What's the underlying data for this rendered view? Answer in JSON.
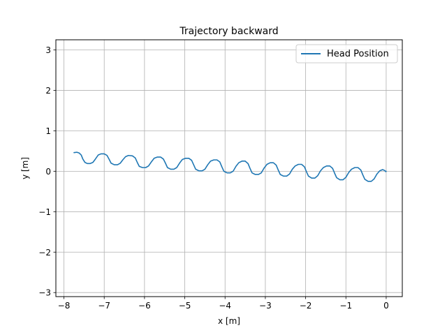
{
  "chart_data": {
    "type": "line",
    "title": "Trajectory backward",
    "xlabel": "x [m]",
    "ylabel": "y [m]",
    "xlim": [
      -8.2,
      0.4
    ],
    "ylim": [
      -3.1,
      3.25
    ],
    "xticks": [
      -8,
      -7,
      -6,
      -5,
      -4,
      -3,
      -2,
      -1,
      0
    ],
    "yticks": [
      -3,
      -2,
      -1,
      0,
      1,
      2,
      3
    ],
    "xtick_labels": [
      "−8",
      "−7",
      "−6",
      "−5",
      "−4",
      "−3",
      "−2",
      "−1",
      "0"
    ],
    "ytick_labels": [
      "−3",
      "−2",
      "−1",
      "0",
      "1",
      "2",
      "3"
    ],
    "grid": true,
    "legend_position": "top-right",
    "series": [
      {
        "name": "Head Position",
        "color": "#1f77b4",
        "points": [
          [
            -7.75,
            0.46
          ],
          [
            -7.68,
            0.47
          ],
          [
            -7.62,
            0.45
          ],
          [
            -7.57,
            0.4
          ],
          [
            -7.53,
            0.3
          ],
          [
            -7.48,
            0.22
          ],
          [
            -7.42,
            0.19
          ],
          [
            -7.35,
            0.19
          ],
          [
            -7.28,
            0.22
          ],
          [
            -7.22,
            0.3
          ],
          [
            -7.15,
            0.4
          ],
          [
            -7.08,
            0.43
          ],
          [
            -7.0,
            0.43
          ],
          [
            -6.93,
            0.39
          ],
          [
            -6.88,
            0.3
          ],
          [
            -6.83,
            0.2
          ],
          [
            -6.75,
            0.16
          ],
          [
            -6.67,
            0.16
          ],
          [
            -6.6,
            0.2
          ],
          [
            -6.54,
            0.28
          ],
          [
            -6.47,
            0.36
          ],
          [
            -6.4,
            0.39
          ],
          [
            -6.3,
            0.38
          ],
          [
            -6.23,
            0.33
          ],
          [
            -6.18,
            0.22
          ],
          [
            -6.13,
            0.12
          ],
          [
            -6.05,
            0.09
          ],
          [
            -5.97,
            0.09
          ],
          [
            -5.9,
            0.13
          ],
          [
            -5.83,
            0.23
          ],
          [
            -5.76,
            0.32
          ],
          [
            -5.68,
            0.35
          ],
          [
            -5.6,
            0.35
          ],
          [
            -5.53,
            0.3
          ],
          [
            -5.48,
            0.2
          ],
          [
            -5.43,
            0.09
          ],
          [
            -5.35,
            0.05
          ],
          [
            -5.27,
            0.05
          ],
          [
            -5.2,
            0.09
          ],
          [
            -5.13,
            0.2
          ],
          [
            -5.06,
            0.29
          ],
          [
            -4.98,
            0.32
          ],
          [
            -4.9,
            0.32
          ],
          [
            -4.83,
            0.27
          ],
          [
            -4.78,
            0.16
          ],
          [
            -4.73,
            0.05
          ],
          [
            -4.65,
            0.01
          ],
          [
            -4.57,
            0.01
          ],
          [
            -4.5,
            0.05
          ],
          [
            -4.43,
            0.16
          ],
          [
            -4.36,
            0.25
          ],
          [
            -4.28,
            0.28
          ],
          [
            -4.2,
            0.28
          ],
          [
            -4.13,
            0.23
          ],
          [
            -4.08,
            0.11
          ],
          [
            -4.03,
            0.0
          ],
          [
            -3.95,
            -0.04
          ],
          [
            -3.87,
            -0.04
          ],
          [
            -3.8,
            0.0
          ],
          [
            -3.73,
            0.12
          ],
          [
            -3.66,
            0.21
          ],
          [
            -3.58,
            0.25
          ],
          [
            -3.5,
            0.25
          ],
          [
            -3.43,
            0.19
          ],
          [
            -3.38,
            0.07
          ],
          [
            -3.33,
            -0.04
          ],
          [
            -3.25,
            -0.08
          ],
          [
            -3.17,
            -0.08
          ],
          [
            -3.1,
            -0.04
          ],
          [
            -3.03,
            0.08
          ],
          [
            -2.96,
            0.17
          ],
          [
            -2.88,
            0.21
          ],
          [
            -2.8,
            0.21
          ],
          [
            -2.73,
            0.15
          ],
          [
            -2.68,
            0.03
          ],
          [
            -2.63,
            -0.08
          ],
          [
            -2.55,
            -0.12
          ],
          [
            -2.47,
            -0.12
          ],
          [
            -2.4,
            -0.07
          ],
          [
            -2.33,
            0.05
          ],
          [
            -2.26,
            0.13
          ],
          [
            -2.18,
            0.17
          ],
          [
            -2.1,
            0.17
          ],
          [
            -2.03,
            0.11
          ],
          [
            -1.98,
            -0.01
          ],
          [
            -1.93,
            -0.12
          ],
          [
            -1.85,
            -0.17
          ],
          [
            -1.77,
            -0.17
          ],
          [
            -1.7,
            -0.11
          ],
          [
            -1.63,
            0.01
          ],
          [
            -1.56,
            0.09
          ],
          [
            -1.48,
            0.13
          ],
          [
            -1.4,
            0.13
          ],
          [
            -1.33,
            0.07
          ],
          [
            -1.28,
            -0.05
          ],
          [
            -1.23,
            -0.16
          ],
          [
            -1.15,
            -0.21
          ],
          [
            -1.07,
            -0.21
          ],
          [
            -1.0,
            -0.15
          ],
          [
            -0.93,
            -0.03
          ],
          [
            -0.86,
            0.05
          ],
          [
            -0.78,
            0.09
          ],
          [
            -0.7,
            0.09
          ],
          [
            -0.63,
            0.03
          ],
          [
            -0.58,
            -0.09
          ],
          [
            -0.53,
            -0.2
          ],
          [
            -0.45,
            -0.25
          ],
          [
            -0.37,
            -0.25
          ],
          [
            -0.3,
            -0.19
          ],
          [
            -0.23,
            -0.07
          ],
          [
            -0.16,
            0.01
          ],
          [
            -0.09,
            0.04
          ],
          [
            -0.04,
            0.02
          ],
          [
            -0.01,
            -0.01
          ],
          [
            0.0,
            0.0
          ]
        ]
      }
    ]
  }
}
